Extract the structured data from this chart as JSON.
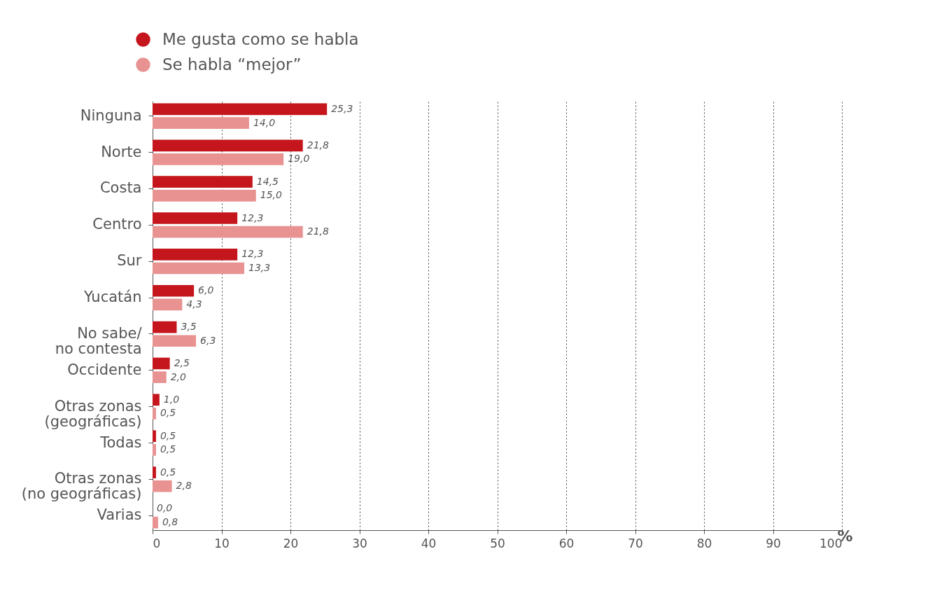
{
  "chart_data": {
    "type": "bar",
    "orientation": "horizontal",
    "xlabel": "%",
    "categories": [
      "Ninguna",
      "Norte",
      "Costa",
      "Centro",
      "Sur",
      "Yucatán",
      "No sabe/\nno contesta",
      "Occidente",
      "Otras zonas\n(geográficas)",
      "Todas",
      "Otras zonas\n(no geográficas)",
      "Varias"
    ],
    "series": [
      {
        "name": "Me gusta como se habla",
        "color": "#c4161c",
        "values": [
          25.3,
          21.8,
          14.5,
          12.3,
          12.3,
          6.0,
          3.5,
          2.5,
          1.0,
          0.5,
          0.5,
          0.0
        ],
        "value_labels": [
          "25,3",
          "21,8",
          "14,5",
          "12,3",
          "12,3",
          "6,0",
          "3,5",
          "2,5",
          "1,0",
          "0,5",
          "0,5",
          "0,0"
        ]
      },
      {
        "name": "Se habla “mejor”",
        "color": "#e89292",
        "values": [
          14.0,
          19.0,
          15.0,
          21.8,
          13.3,
          4.3,
          6.3,
          2.0,
          0.5,
          0.5,
          2.8,
          0.8
        ],
        "value_labels": [
          "14,0",
          "19,0",
          "15,0",
          "21,8",
          "13,3",
          "4,3",
          "6,3",
          "2,0",
          "0,5",
          "0,5",
          "2,8",
          "0,8"
        ]
      }
    ],
    "xlim": [
      0,
      100
    ],
    "xticks": [
      0,
      10,
      20,
      30,
      40,
      50,
      60,
      70,
      80,
      90,
      100
    ],
    "grid": "x",
    "legend": "top left"
  }
}
